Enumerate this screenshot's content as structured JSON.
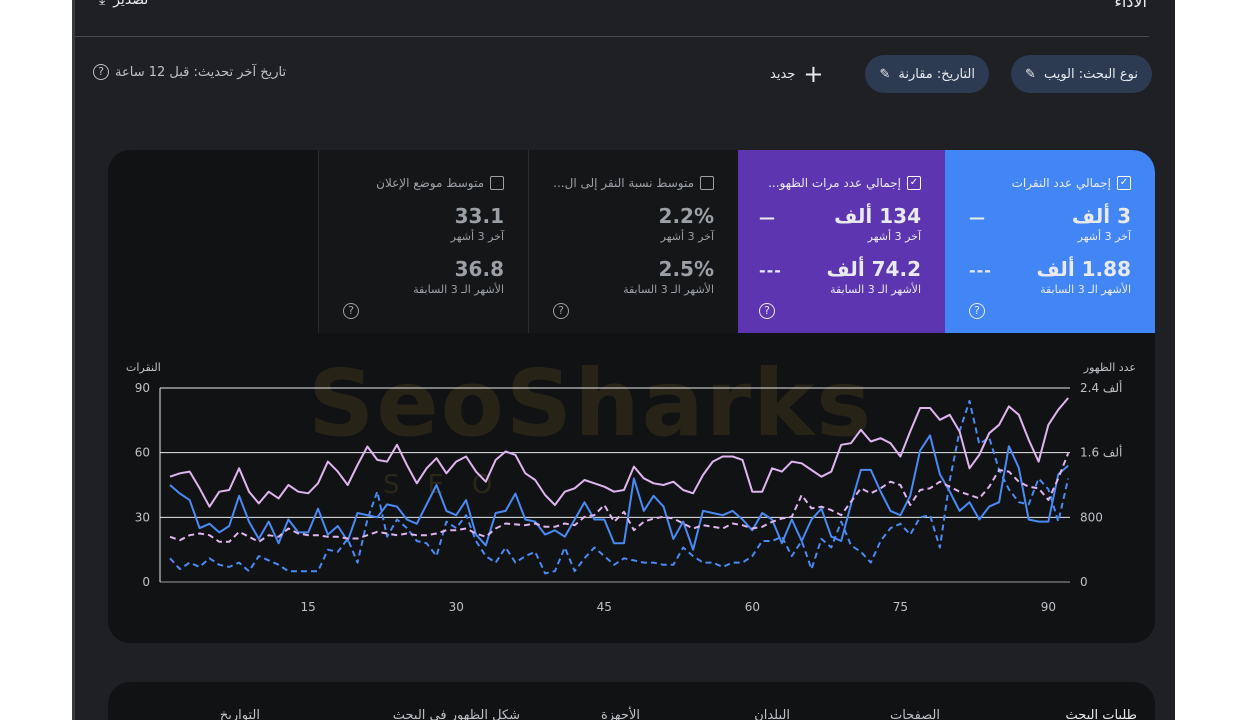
{
  "header": {
    "title": "الأداء",
    "export_label": "تصدير"
  },
  "filters": {
    "chips": [
      {
        "label": "نوع البحث: الويب",
        "icon": "pencil-icon"
      },
      {
        "label": "التاريخ: مقارنة",
        "icon": "pencil-icon"
      }
    ],
    "new_label": "جديد",
    "last_updated": "تاريخ آخر تحديث: قبل 12 ساعة"
  },
  "metrics": [
    {
      "label": "إجمالي عدد النقرات",
      "checked": true,
      "current": "3 ألف",
      "current_period": "آخر 3 أشهر",
      "previous": "1.88 ألف",
      "previous_period": "الأشهر الـ 3 السابقة",
      "color": "#4285f4"
    },
    {
      "label": "إجمالي عدد مرات الظهو...",
      "checked": true,
      "current": "134 ألف",
      "current_period": "آخر 3 أشهر",
      "previous": "74.2 ألف",
      "previous_period": "الأشهر الـ 3 السابقة",
      "color": "#5e35b1"
    },
    {
      "label": "متوسط نسبة النقر إلى ال...",
      "checked": false,
      "current": "2.2%",
      "current_period": "آخر 3 أشهر",
      "previous": "2.5%",
      "previous_period": "الأشهر الـ 3 السابقة"
    },
    {
      "label": "متوسط موضع الإعلان",
      "checked": false,
      "current": "33.1",
      "current_period": "آخر 3 أشهر",
      "previous": "36.8",
      "previous_period": "الأشهر الـ 3 السابقة"
    }
  ],
  "watermark": {
    "text": "SeoSharks",
    "sub": "SEO"
  },
  "chart_data": {
    "type": "line",
    "left_axis": {
      "label": "النقرات",
      "ticks": [
        "0",
        "30",
        "60",
        "90"
      ],
      "range": [
        0,
        90
      ]
    },
    "right_axis": {
      "label": "عدد الظهور",
      "ticks": [
        "0",
        "800",
        "1.6 ألف",
        "2.4 ألف"
      ],
      "range": [
        0,
        2400
      ]
    },
    "x_ticks": [
      "15",
      "30",
      "45",
      "60",
      "75",
      "90"
    ],
    "x_range": [
      1,
      92
    ],
    "grid": true,
    "series": [
      {
        "axis": "left",
        "color": "#4a8af4",
        "dashed": false,
        "values": [
          45,
          41,
          38,
          25,
          27,
          23,
          26,
          40,
          28,
          20,
          28,
          18,
          29,
          23,
          23,
          34,
          22,
          26,
          19,
          32,
          31,
          30,
          36,
          35,
          29,
          27,
          36,
          45,
          33,
          31,
          38,
          22,
          17,
          32,
          33,
          41,
          29,
          28,
          22,
          24,
          21,
          29,
          37,
          29,
          29,
          18,
          18,
          48,
          33,
          40,
          35,
          20,
          28,
          15,
          33,
          32,
          31,
          33,
          29,
          24,
          32,
          29,
          18,
          29,
          19,
          29,
          34,
          21,
          19,
          36,
          52,
          52,
          42,
          33,
          31,
          40,
          61,
          68,
          50,
          42,
          33,
          37,
          29,
          35,
          37,
          63,
          53,
          29,
          28,
          28,
          50,
          54
        ]
      },
      {
        "axis": "left",
        "color": "#4a8af4",
        "dashed": true,
        "values": [
          11,
          6,
          9,
          7,
          11,
          8,
          7,
          9,
          5,
          12,
          10,
          8,
          5,
          5,
          5,
          5,
          15,
          14,
          20,
          9,
          29,
          42,
          21,
          29,
          25,
          19,
          18,
          12,
          28,
          25,
          31,
          19,
          12,
          9,
          16,
          9,
          12,
          14,
          4,
          5,
          16,
          5,
          11,
          16,
          12,
          8,
          11,
          10,
          9,
          9,
          8,
          8,
          16,
          12,
          9,
          9,
          7,
          9,
          9,
          12,
          19,
          19,
          21,
          12,
          19,
          6,
          20,
          16,
          28,
          17,
          14,
          9,
          19,
          25,
          27,
          22,
          30,
          31,
          16,
          47,
          70,
          84,
          64,
          67,
          52,
          43,
          37,
          36,
          48,
          43,
          28,
          48
        ]
      },
      {
        "axis": "right",
        "color": "#e0b4f0",
        "dashed": false,
        "values": [
          1303,
          1345,
          1366,
          1159,
          931,
          1117,
          1138,
          1407,
          1117,
          972,
          1117,
          1034,
          1200,
          1117,
          1097,
          1221,
          1490,
          1366,
          1200,
          1448,
          1676,
          1510,
          1490,
          1697,
          1448,
          1221,
          1407,
          1531,
          1345,
          1490,
          1552,
          1366,
          1241,
          1510,
          1614,
          1572,
          1345,
          1262,
          1076,
          952,
          1117,
          1159,
          1262,
          1221,
          1179,
          1117,
          1138,
          1428,
          1283,
          1221,
          1200,
          1241,
          1138,
          1097,
          1324,
          1490,
          1552,
          1552,
          1510,
          1117,
          1117,
          1407,
          1366,
          1490,
          1469,
          1386,
          1303,
          1366,
          1697,
          1717,
          1883,
          1738,
          1779,
          1717,
          1552,
          1862,
          2152,
          2152,
          2007,
          2069,
          1862,
          1407,
          1572,
          1841,
          1945,
          2172,
          2069,
          1759,
          1490,
          1945,
          2131,
          2276
        ]
      },
      {
        "axis": "right",
        "color": "#e0b4f0",
        "dashed": true,
        "values": [
          559,
          517,
          579,
          600,
          579,
          497,
          497,
          621,
          559,
          497,
          579,
          559,
          662,
          600,
          579,
          579,
          559,
          559,
          538,
          538,
          579,
          621,
          600,
          579,
          600,
          579,
          579,
          600,
          641,
          641,
          662,
          600,
          559,
          662,
          724,
          712,
          703,
          724,
          683,
          683,
          724,
          703,
          807,
          828,
          952,
          745,
          869,
          641,
          745,
          786,
          807,
          786,
          724,
          662,
          703,
          683,
          662,
          724,
          703,
          662,
          683,
          745,
          786,
          807,
          1076,
          910,
          931,
          890,
          828,
          993,
          1159,
          1097,
          1159,
          1241,
          1200,
          952,
          1138,
          1159,
          1241,
          1179,
          1117,
          1076,
          1034,
          1179,
          1386,
          1366,
          1241,
          1179,
          1159,
          1014,
          1283,
          1593
        ]
      }
    ]
  },
  "tabs": [
    "طلبات البحث",
    "الصفحات",
    "البلدان",
    "الأجهزة",
    "شكل الظهور في البحث",
    "التواريخ"
  ]
}
